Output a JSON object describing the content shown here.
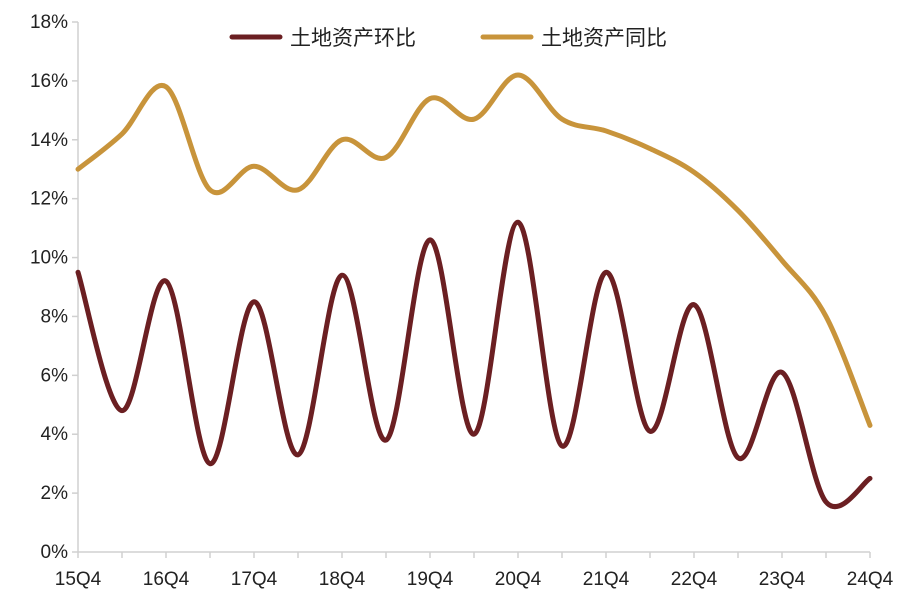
{
  "chart_data": {
    "type": "line",
    "title": "",
    "xlabel": "",
    "ylabel": "",
    "ylim": [
      0,
      18
    ],
    "ytick_step": 2,
    "y_tick_labels": [
      "0%",
      "2%",
      "4%",
      "6%",
      "8%",
      "10%",
      "12%",
      "14%",
      "16%",
      "18%"
    ],
    "x_tick_labels": [
      "15Q4",
      "16Q4",
      "17Q4",
      "18Q4",
      "19Q4",
      "20Q4",
      "21Q4",
      "22Q4",
      "23Q4",
      "24Q4"
    ],
    "categories": [
      "15Q4",
      "16Q2",
      "16Q4",
      "17Q2",
      "17Q4",
      "18Q2",
      "18Q4",
      "19Q2",
      "19Q4",
      "20Q2",
      "20Q4",
      "21Q2",
      "21Q4",
      "22Q2",
      "22Q4",
      "23Q2",
      "23Q4",
      "24Q2",
      "24Q4"
    ],
    "grid": false,
    "legend_position": "top",
    "series": [
      {
        "name": "土地资产环比",
        "color": "#6b1f22",
        "values": [
          9.5,
          4.8,
          9.2,
          3.0,
          8.5,
          3.3,
          9.4,
          3.8,
          10.6,
          4.0,
          11.2,
          3.6,
          9.5,
          4.1,
          8.4,
          3.2,
          6.1,
          1.7,
          2.5
        ]
      },
      {
        "name": "土地资产同比",
        "color": "#c8943b",
        "values": [
          13.0,
          14.2,
          15.8,
          12.3,
          13.1,
          12.3,
          14.0,
          13.4,
          15.4,
          14.7,
          16.2,
          14.7,
          14.3,
          13.7,
          12.9,
          11.6,
          9.9,
          8.0,
          4.3
        ]
      }
    ]
  }
}
